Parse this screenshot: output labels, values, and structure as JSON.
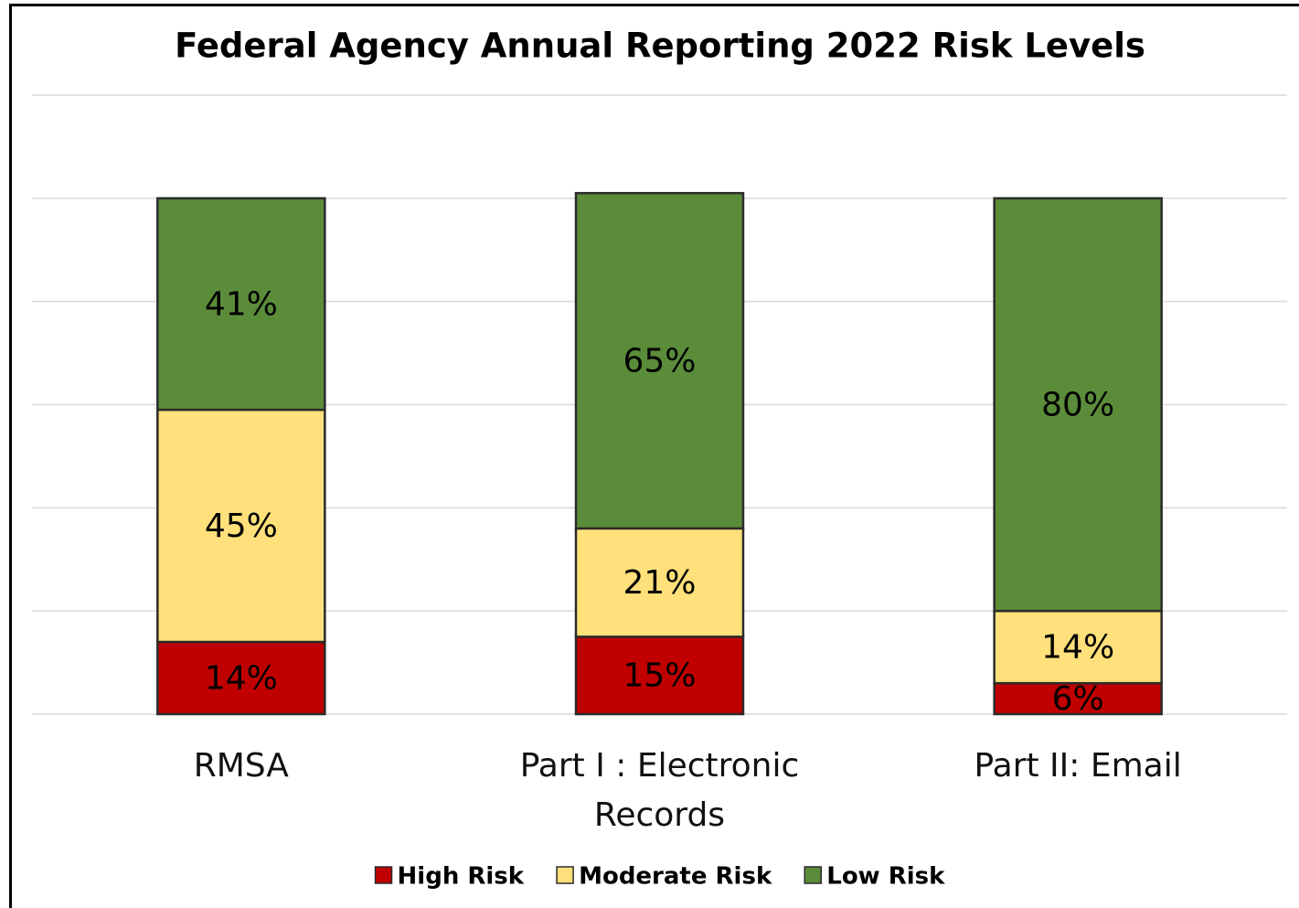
{
  "chart_data": {
    "type": "stacked_bar",
    "title": "Federal Agency Annual Reporting 2022 Risk Levels",
    "categories": [
      "RMSA",
      "Part I : Electronic Records",
      "Part II: Email"
    ],
    "series": [
      {
        "name": "High Risk",
        "color": "#c00000",
        "values": [
          14,
          15,
          6
        ],
        "value_labels": [
          "14%",
          "15%",
          "6%"
        ]
      },
      {
        "name": "Moderate Risk",
        "color": "#ffe07a",
        "values": [
          45,
          21,
          14
        ],
        "value_labels": [
          "45%",
          "21%",
          "14%"
        ]
      },
      {
        "name": "Low Risk",
        "color": "#5b8c3a",
        "values": [
          41,
          65,
          80
        ],
        "value_labels": [
          "41%",
          "65%",
          "80%"
        ]
      }
    ],
    "ylim": [
      0,
      120
    ],
    "yticks": [
      0,
      20,
      40,
      60,
      80,
      100,
      120
    ],
    "grid": true,
    "legend": "bottom"
  }
}
